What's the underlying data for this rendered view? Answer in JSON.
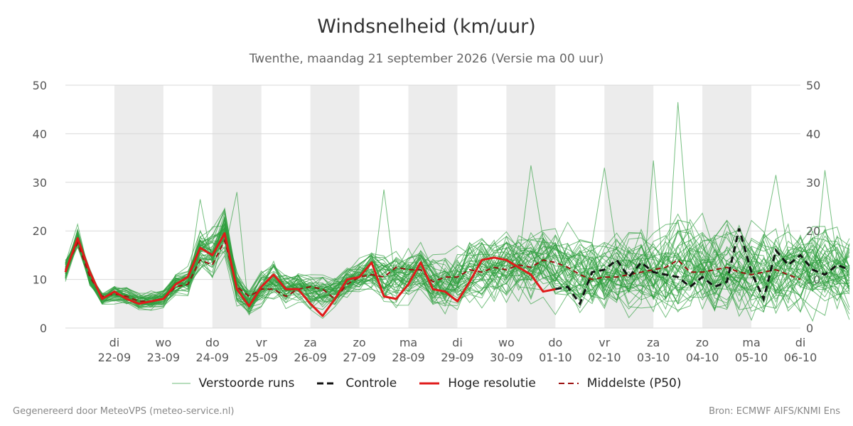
{
  "header": {
    "title": "Windsnelheid (km/uur)",
    "subtitle": "Twenthe, maandag 21 september 2026 (Versie ma 00 uur)"
  },
  "footer": {
    "left": "Gegenereerd door MeteoVPS (meteo-service.nl)",
    "right": "Bron: ECMWF AIFS/KNMI Ens"
  },
  "legend": {
    "items": [
      {
        "label": "Verstoorde runs"
      },
      {
        "label": "Controle"
      },
      {
        "label": "Hoge resolutie"
      },
      {
        "label": "Middelste (P50)"
      }
    ]
  },
  "colors": {
    "ensemble": "#2e9e3e",
    "control": "#111111",
    "hires": "#e01a1a",
    "median": "#9b0f0f",
    "band": "#ececec",
    "grid": "#d9d9d9"
  },
  "chart_data": {
    "type": "line",
    "x_unit": "day offset from 2026-09-21 00:00",
    "ylim": [
      0,
      50
    ],
    "yticks": [
      0,
      10,
      20,
      30,
      40,
      50
    ],
    "grid": "horizontal",
    "xticks": [
      {
        "day": "di",
        "date": "22-09"
      },
      {
        "day": "wo",
        "date": "23-09"
      },
      {
        "day": "do",
        "date": "24-09"
      },
      {
        "day": "vr",
        "date": "25-09"
      },
      {
        "day": "za",
        "date": "26-09"
      },
      {
        "day": "zo",
        "date": "27-09"
      },
      {
        "day": "ma",
        "date": "28-09"
      },
      {
        "day": "di",
        "date": "29-09"
      },
      {
        "day": "wo",
        "date": "30-09"
      },
      {
        "day": "do",
        "date": "01-10"
      },
      {
        "day": "vr",
        "date": "02-10"
      },
      {
        "day": "za",
        "date": "03-10"
      },
      {
        "day": "zo",
        "date": "04-10"
      },
      {
        "day": "ma",
        "date": "05-10"
      },
      {
        "day": "di",
        "date": "06-10"
      }
    ],
    "shaded_days": [
      "22-09",
      "24-09",
      "26-09",
      "28-09",
      "30-09",
      "02-10",
      "04-10"
    ],
    "hires": {
      "name": "Hoge resolutie",
      "x": [
        0,
        0.25,
        0.5,
        0.75,
        1,
        1.25,
        1.5,
        1.75,
        2,
        2.25,
        2.5,
        2.75,
        3,
        3.25,
        3.5,
        3.75,
        4,
        4.25,
        4.5,
        4.75,
        5,
        5.25,
        5.5,
        5.75,
        6,
        6.25,
        6.5,
        6.75,
        7,
        7.25,
        7.5,
        7.75,
        8,
        8.25,
        8.5,
        8.75,
        9,
        9.25,
        9.5,
        9.75,
        10
      ],
      "y": [
        11.5,
        18.5,
        11.5,
        6,
        7.5,
        6,
        5,
        5.5,
        6,
        9,
        10.5,
        16.5,
        15,
        19.5,
        8,
        4.5,
        8.5,
        11,
        8,
        8,
        5,
        2.5,
        6,
        10,
        10.5,
        13.5,
        6.5,
        6,
        9,
        13.5,
        8,
        7.5,
        5.5,
        9.5,
        14,
        14.5,
        14,
        12.5,
        11,
        7.5,
        8
      ]
    },
    "control": {
      "name": "Controle",
      "x": [
        10,
        10.25,
        10.5,
        10.75,
        11,
        11.25,
        11.5,
        11.75,
        12,
        12.25,
        12.5,
        12.75,
        13,
        13.25,
        13.5,
        13.75,
        14,
        14.25,
        14.5,
        14.75,
        15,
        15.25,
        15.5,
        15.75,
        16
      ],
      "y": [
        8,
        8.5,
        5,
        11.5,
        12,
        14,
        10.5,
        13.5,
        11.5,
        11,
        10.5,
        8.5,
        10.5,
        8.5,
        9.5,
        20.5,
        11.5,
        6,
        16,
        13,
        15,
        12,
        11,
        13,
        12
      ]
    },
    "median": {
      "name": "Middelste (P50)",
      "x": [
        0,
        0.25,
        0.5,
        0.75,
        1,
        1.25,
        1.5,
        1.75,
        2,
        2.25,
        2.5,
        2.75,
        3,
        3.25,
        3.5,
        3.75,
        4,
        4.25,
        4.5,
        4.75,
        5,
        5.25,
        5.5,
        5.75,
        6,
        6.25,
        6.5,
        6.75,
        7,
        7.25,
        7.5,
        7.75,
        8,
        8.25,
        8.5,
        8.75,
        9,
        9.25,
        9.5,
        9.75,
        10,
        10.25,
        10.5,
        10.75,
        11,
        11.25,
        11.5,
        11.75,
        12,
        12.25,
        12.5,
        12.75,
        13,
        13.25,
        13.5,
        13.75,
        14,
        14.25,
        14.5,
        14.75,
        15
      ],
      "y": [
        12,
        17.5,
        10.5,
        6.5,
        7,
        6.5,
        5.5,
        5.5,
        6,
        8.5,
        9,
        14,
        13,
        18,
        8.5,
        6.5,
        8,
        8,
        6.5,
        8,
        8.5,
        8,
        6,
        9,
        10.5,
        11,
        10.5,
        12.5,
        12,
        12,
        9.5,
        10.5,
        10.5,
        12,
        11.5,
        12.5,
        12,
        13,
        12.5,
        14,
        13.5,
        12.5,
        11,
        10,
        10.5,
        10.5,
        11,
        11.5,
        12,
        12.5,
        14,
        11.5,
        11.5,
        12,
        12.5,
        11.5,
        11,
        11.5,
        12,
        11,
        10
      ]
    },
    "ensemble_members": 50,
    "ensemble_envelope": {
      "x": [
        0,
        0.25,
        0.5,
        0.75,
        1,
        1.25,
        1.5,
        1.75,
        2,
        2.25,
        2.5,
        2.75,
        3,
        3.25,
        3.5,
        3.75,
        4,
        4.25,
        4.5,
        4.75,
        5,
        5.25,
        5.5,
        5.75,
        6,
        6.25,
        6.5,
        6.75,
        7,
        7.25,
        7.5,
        7.75,
        8,
        8.25,
        8.5,
        8.75,
        9,
        9.25,
        9.5,
        9.75,
        10,
        10.25,
        10.5,
        10.75,
        11,
        11.25,
        11.5,
        11.75,
        12,
        12.25,
        12.5,
        12.75,
        13,
        13.25,
        13.5,
        13.75,
        14,
        14.25,
        14.5,
        14.75,
        15,
        15.25,
        15.5,
        15.75,
        16
      ],
      "y": [
        12,
        18.5,
        10.5,
        6,
        7,
        6.5,
        5.5,
        5.5,
        6,
        9,
        9.5,
        16,
        15,
        19.5,
        8,
        5,
        8,
        9.5,
        7.5,
        8.5,
        7,
        6.5,
        7,
        9.5,
        10.5,
        12,
        10.5,
        11,
        11,
        12.5,
        10,
        10,
        10.5,
        12,
        12.5,
        12.5,
        13,
        13,
        12.5,
        12.5,
        12.5,
        12.5,
        11.5,
        11,
        11,
        11.5,
        11.5,
        12,
        11.5,
        12,
        12.5,
        12,
        12,
        12,
        12.5,
        12,
        12,
        12,
        12,
        11.5,
        11.5,
        12,
        12,
        11.5,
        11
      ],
      "spread": [
        3,
        3,
        2,
        1.5,
        2,
        2,
        2,
        2,
        2,
        2.5,
        3,
        5,
        6,
        6,
        4,
        3,
        4,
        4,
        4,
        4,
        4,
        4.5,
        4,
        4,
        4,
        5,
        6,
        6,
        6,
        6,
        7,
        7,
        7,
        7.5,
        8,
        8,
        8,
        8.5,
        9,
        9,
        9,
        9,
        9,
        9,
        9,
        9.5,
        9.5,
        9.5,
        9.5,
        9.5,
        10,
        10,
        10,
        10,
        10,
        10,
        10,
        10,
        10,
        10,
        10,
        10,
        10,
        10,
        10
      ]
    },
    "ensemble_extremes": [
      {
        "x": 2.75,
        "y": 26.5
      },
      {
        "x": 3.5,
        "y": 28
      },
      {
        "x": 6.5,
        "y": 28.5
      },
      {
        "x": 9.5,
        "y": 33.5
      },
      {
        "x": 11,
        "y": 33
      },
      {
        "x": 12,
        "y": 34.5
      },
      {
        "x": 12.5,
        "y": 46.5
      },
      {
        "x": 14.5,
        "y": 31.5
      },
      {
        "x": 15.5,
        "y": 32.5
      }
    ]
  }
}
